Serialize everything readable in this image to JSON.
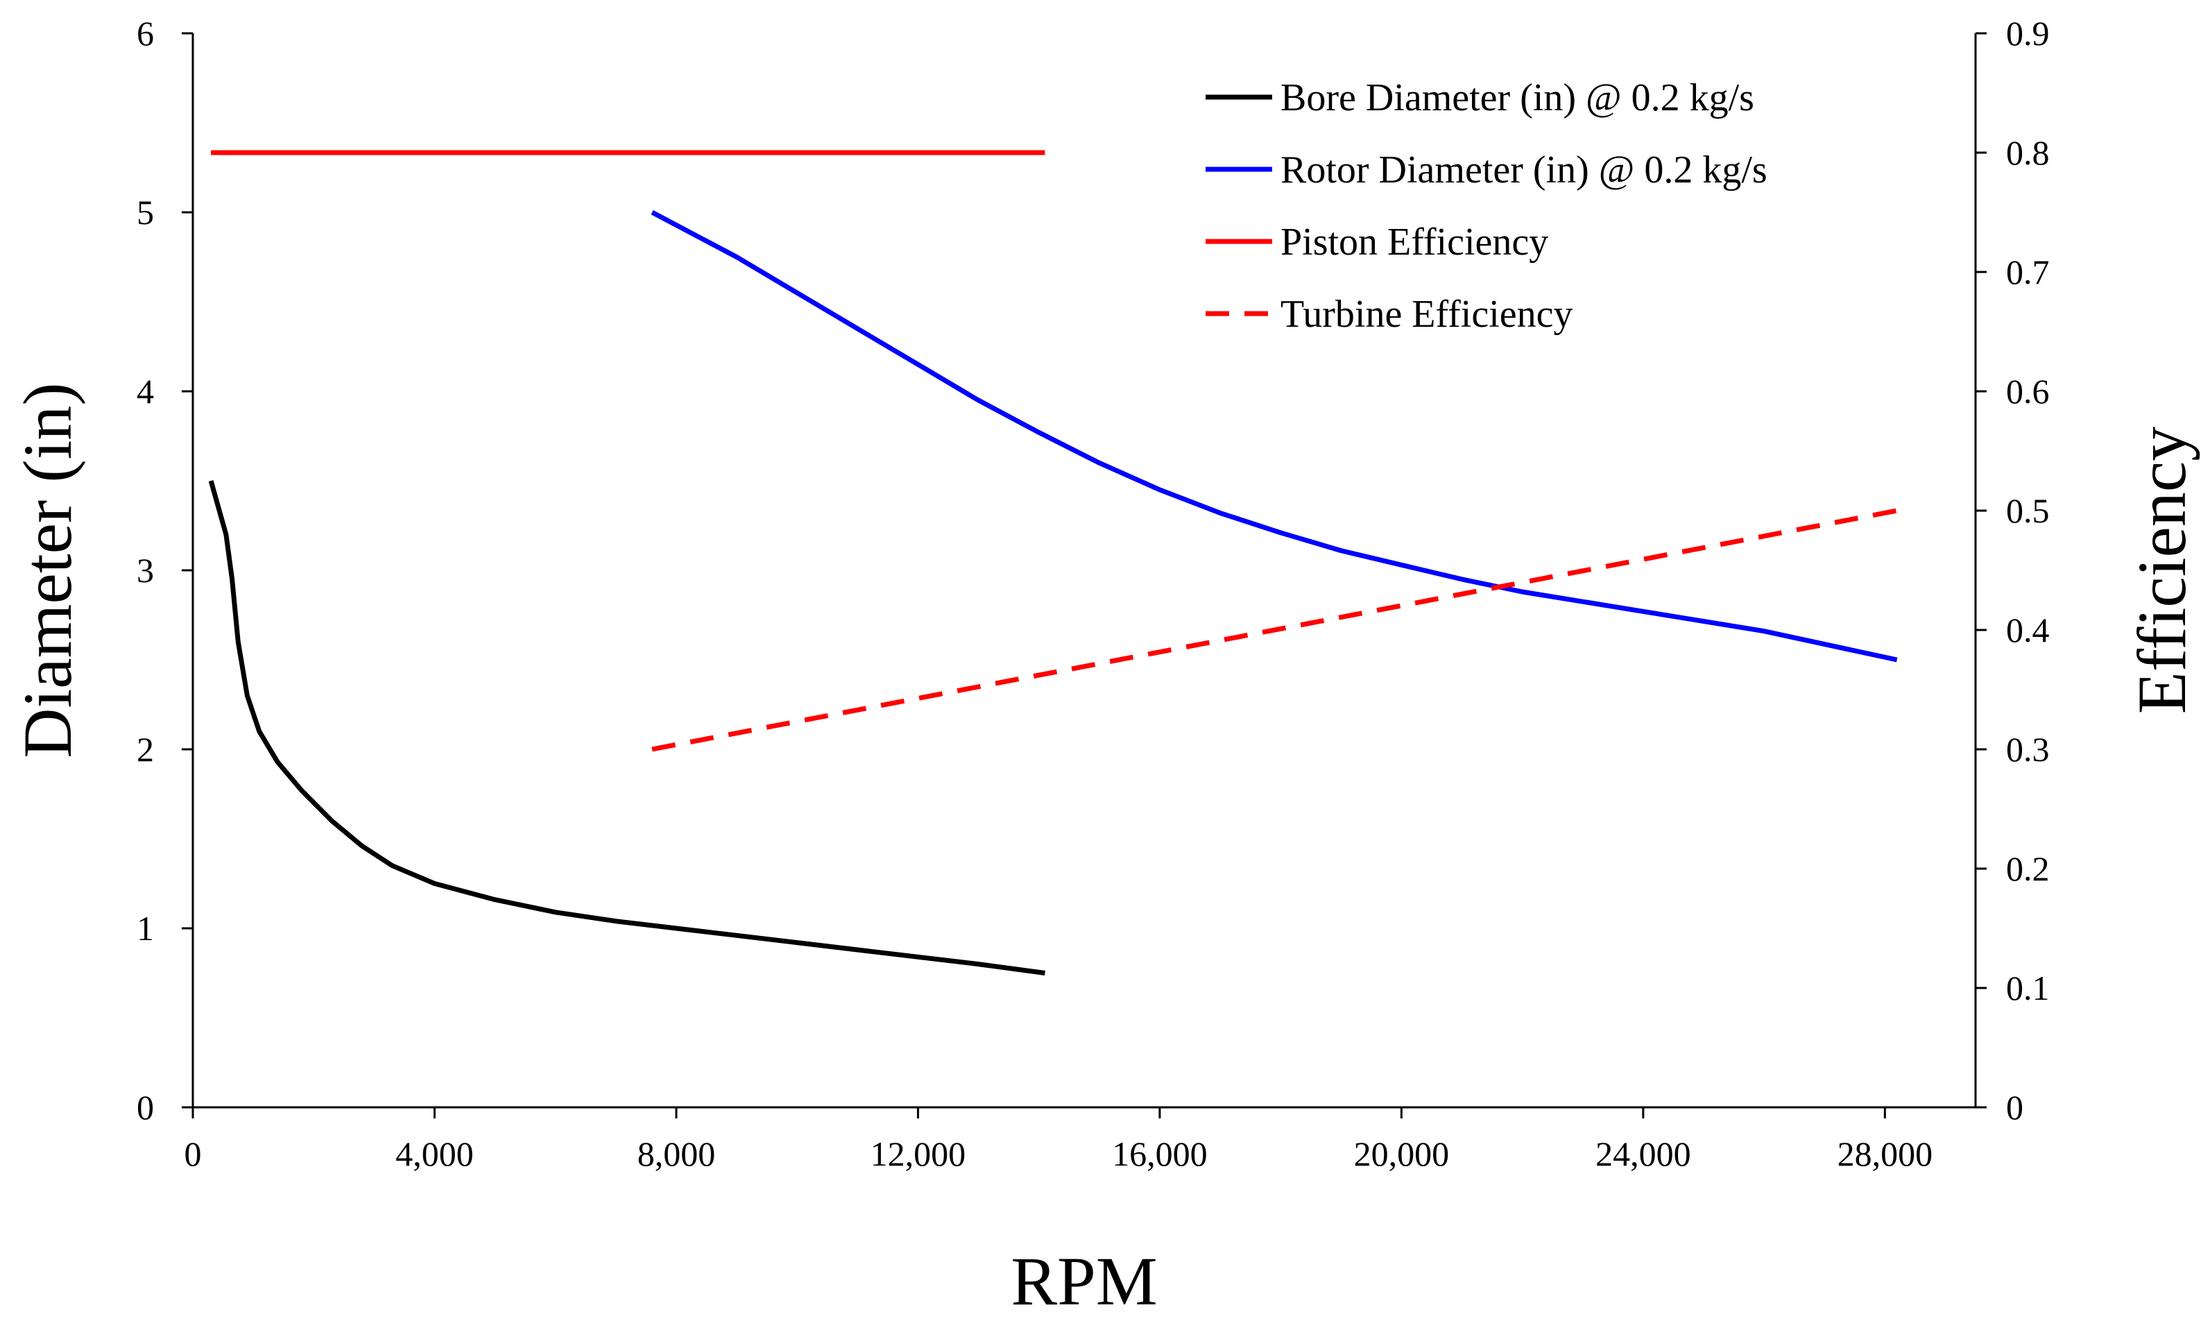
{
  "chart_data": {
    "type": "line",
    "title": "",
    "xlabel": "RPM",
    "ylabel": "Diameter (in)",
    "y2label": "Efficiency",
    "xlim": [
      0,
      29500
    ],
    "ylim": [
      0,
      6
    ],
    "y2lim": [
      0,
      0.9
    ],
    "x_ticks": [
      0,
      4000,
      8000,
      12000,
      16000,
      20000,
      24000,
      28000
    ],
    "x_tick_labels": [
      "0",
      "4,000",
      "8,000",
      "12,000",
      "16,000",
      "20,000",
      "24,000",
      "28,000"
    ],
    "y_ticks": [
      0,
      1,
      2,
      3,
      4,
      5,
      6
    ],
    "y_tick_labels": [
      "0",
      "1",
      "2",
      "3",
      "4",
      "5",
      "6"
    ],
    "y2_ticks": [
      0,
      0.1,
      0.2,
      0.3,
      0.4,
      0.5,
      0.6,
      0.7,
      0.8,
      0.9
    ],
    "y2_tick_labels": [
      "0",
      "0.1",
      "0.2",
      "0.3",
      "0.4",
      "0.5",
      "0.6",
      "0.7",
      "0.8",
      "0.9"
    ],
    "legend_position": "top-right",
    "series": [
      {
        "name": "Bore Diameter (in) @ 0.2 kg/s",
        "axis": "left",
        "color": "#000000",
        "dash": "solid",
        "points": [
          [
            300,
            3.5
          ],
          [
            400,
            3.38
          ],
          [
            550,
            3.2
          ],
          [
            650,
            2.95
          ],
          [
            750,
            2.6
          ],
          [
            900,
            2.3
          ],
          [
            1100,
            2.1
          ],
          [
            1400,
            1.93
          ],
          [
            1800,
            1.77
          ],
          [
            2300,
            1.6
          ],
          [
            2800,
            1.46
          ],
          [
            3300,
            1.35
          ],
          [
            4000,
            1.25
          ],
          [
            5000,
            1.16
          ],
          [
            6000,
            1.09
          ],
          [
            7000,
            1.04
          ],
          [
            8000,
            1.0
          ],
          [
            9000,
            0.96
          ],
          [
            10000,
            0.92
          ],
          [
            11000,
            0.88
          ],
          [
            12000,
            0.84
          ],
          [
            13000,
            0.8
          ],
          [
            14100,
            0.75
          ]
        ]
      },
      {
        "name": "Rotor Diameter (in) @ 0.2 kg/s",
        "axis": "left",
        "color": "#0000ff",
        "dash": "solid",
        "points": [
          [
            7600,
            5.0
          ],
          [
            9000,
            4.75
          ],
          [
            10000,
            4.55
          ],
          [
            11000,
            4.35
          ],
          [
            12000,
            4.15
          ],
          [
            13000,
            3.95
          ],
          [
            14000,
            3.77
          ],
          [
            15000,
            3.6
          ],
          [
            16000,
            3.45
          ],
          [
            17000,
            3.32
          ],
          [
            18000,
            3.21
          ],
          [
            19000,
            3.11
          ],
          [
            20000,
            3.03
          ],
          [
            21000,
            2.95
          ],
          [
            22000,
            2.88
          ],
          [
            24000,
            2.77
          ],
          [
            26000,
            2.66
          ],
          [
            28200,
            2.5
          ]
        ]
      },
      {
        "name": "Piston Efficiency",
        "axis": "right",
        "color": "#ff0000",
        "dash": "solid",
        "points": [
          [
            300,
            0.8
          ],
          [
            14100,
            0.8
          ]
        ]
      },
      {
        "name": "Turbine Efficiency",
        "axis": "right",
        "color": "#ff0000",
        "dash": "dashed",
        "points": [
          [
            7600,
            0.3
          ],
          [
            28200,
            0.5
          ]
        ]
      }
    ]
  }
}
